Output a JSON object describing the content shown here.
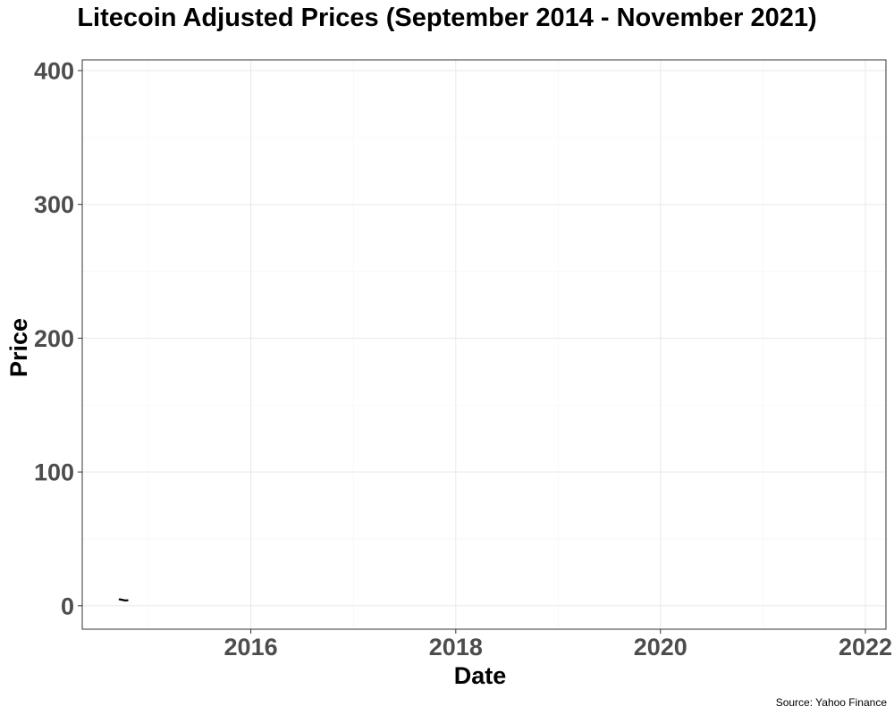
{
  "chart_data": {
    "type": "line",
    "title": "Litecoin Adjusted Prices (September 2014 - November 2021)",
    "xlabel": "Date",
    "ylabel": "Price",
    "caption": "Source: Yahoo Finance",
    "x_range": [
      "2014-09-17",
      "2021-11-05"
    ],
    "ylim": [
      -17.5,
      408
    ],
    "x_ticks": [
      "2016",
      "2018",
      "2020",
      "2022"
    ],
    "y_ticks": [
      0,
      100,
      200,
      300,
      400
    ],
    "grid": true,
    "series": [
      {
        "color": "#000000",
        "points": [
          {
            "x": "2014-09-20",
            "y": 4.8
          },
          {
            "x": "2014-09-27",
            "y": 4.6
          },
          {
            "x": "2014-10-04",
            "y": 4.2
          },
          {
            "x": "2014-10-11",
            "y": 4.0
          },
          {
            "x": "2014-10-18",
            "y": 4.1
          }
        ]
      }
    ]
  }
}
